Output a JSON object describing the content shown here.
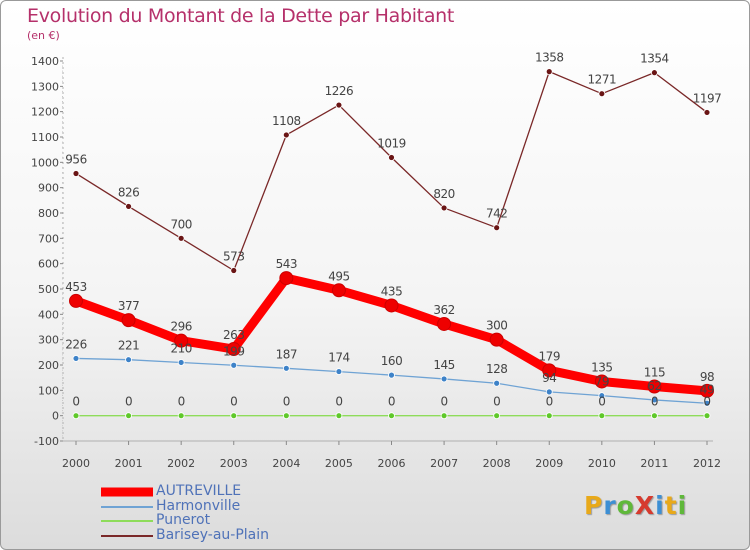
{
  "header": {
    "title": "Evolution du Montant de la Dette par Habitant",
    "unit": "(en €)"
  },
  "logo": {
    "text": "ProXiti",
    "letters": [
      "P",
      "r",
      "o",
      "X",
      "i",
      "t",
      "i"
    ],
    "colors": [
      "#e8a91a",
      "#3d8fd4",
      "#5fb83a",
      "#d63a2e",
      "#3d8fd4",
      "#e8a91a",
      "#5fb83a"
    ]
  },
  "chart_data": {
    "type": "line",
    "title": "Evolution du Montant de la Dette par Habitant",
    "ylabel": "(en €)",
    "xlabel": "",
    "categories": [
      "2000",
      "2001",
      "2002",
      "2003",
      "2004",
      "2005",
      "2006",
      "2007",
      "2008",
      "2009",
      "2010",
      "2011",
      "2012"
    ],
    "ylim": [
      -100,
      1400
    ],
    "yticks": [
      -100,
      0,
      100,
      200,
      300,
      400,
      500,
      600,
      700,
      800,
      900,
      1000,
      1100,
      1200,
      1300,
      1400
    ],
    "grid": false,
    "legend_position": "bottom-left",
    "series": [
      {
        "name": "AUTREVILLE",
        "color": "#ff0000",
        "marker_color": "#ee0000",
        "values": [
          453,
          377,
          296,
          263,
          543,
          495,
          435,
          362,
          300,
          179,
          135,
          115,
          98
        ],
        "labels": [
          "453",
          "377",
          "296",
          "263",
          "543",
          "495",
          "435",
          "362",
          "300",
          "179",
          "135",
          "115",
          "98"
        ]
      },
      {
        "name": "Harmonville",
        "color": "#6fa3d4",
        "marker_color": "#3d82c8",
        "values": [
          226,
          221,
          210,
          199,
          187,
          174,
          160,
          145,
          128,
          94,
          79,
          62,
          49
        ],
        "labels": [
          "226",
          "221",
          "210",
          "199",
          "187",
          "174",
          "160",
          "145",
          "128",
          "94",
          "79",
          "62",
          "49"
        ]
      },
      {
        "name": "Punerot",
        "color": "#8edc5a",
        "marker_color": "#5fc82a",
        "values": [
          0,
          0,
          0,
          0,
          0,
          0,
          0,
          0,
          0,
          0,
          0,
          0,
          0
        ],
        "labels": [
          "0",
          "0",
          "0",
          "0",
          "0",
          "0",
          "0",
          "0",
          "0",
          "0",
          "0",
          "0",
          "0"
        ]
      },
      {
        "name": "Barisey-au-Plain",
        "color": "#7a2828",
        "marker_color": "#6a1515",
        "values": [
          956,
          826,
          700,
          573,
          1108,
          1226,
          1019,
          820,
          742,
          1358,
          1271,
          1354,
          1197
        ],
        "labels": [
          "956",
          "826",
          "700",
          "573",
          "1108",
          "1226",
          "1019",
          "820",
          "742",
          "1358",
          "1271",
          "1354",
          "1197"
        ]
      }
    ]
  }
}
